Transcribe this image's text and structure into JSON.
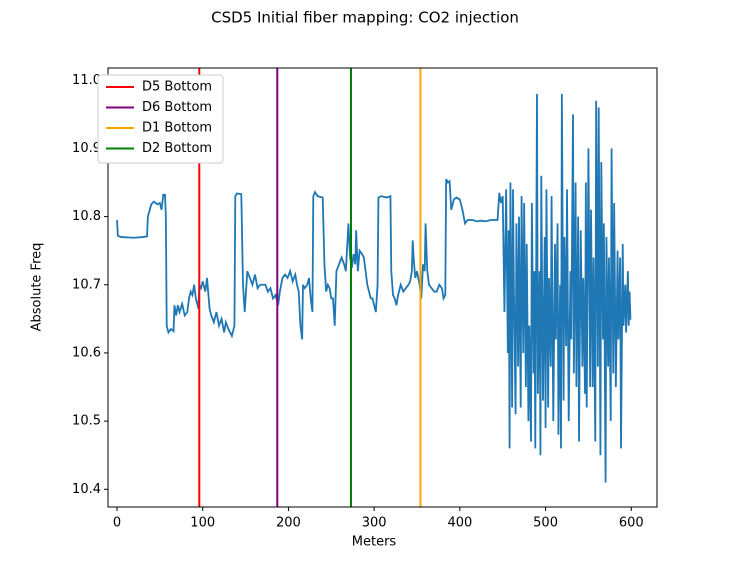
{
  "chart_data": {
    "type": "line",
    "title": "CSD5 Initial fiber mapping: CO2 injection",
    "x_label": "Meters",
    "y_label": "Absolute Freq",
    "x": [
      0,
      1,
      5,
      20,
      30,
      35,
      36,
      40,
      43,
      47,
      50,
      52,
      54,
      56,
      57,
      58,
      60,
      63,
      66,
      67,
      69,
      71,
      73,
      76,
      79,
      82,
      84,
      86,
      88,
      90,
      92,
      95,
      96,
      98,
      100,
      103,
      105,
      108,
      110,
      113,
      116,
      119,
      122,
      125,
      127,
      130,
      134,
      137,
      138,
      140,
      145,
      147,
      149,
      152,
      155,
      158,
      161,
      164,
      167,
      170,
      173,
      176,
      179,
      182,
      185,
      188,
      190,
      193,
      196,
      199,
      202,
      205,
      208,
      210,
      212,
      214,
      216,
      217,
      219,
      222,
      224,
      226,
      228,
      229,
      231,
      234,
      240,
      242,
      244,
      246,
      248,
      250,
      252,
      254,
      256,
      259,
      262,
      265,
      267,
      270,
      272,
      274,
      276,
      278,
      279,
      281,
      283,
      286,
      288,
      290,
      292,
      294,
      296,
      298,
      300,
      302,
      304,
      305,
      308,
      315,
      319,
      320,
      322,
      324,
      326,
      328,
      331,
      334,
      337,
      340,
      342,
      344,
      345,
      346,
      348,
      350,
      353,
      355,
      357,
      359,
      360,
      362,
      364,
      367,
      370,
      373,
      376,
      379,
      381,
      383,
      384,
      386,
      388,
      390,
      393,
      396,
      400,
      403,
      406,
      409,
      415,
      420,
      425,
      430,
      436,
      444,
      446,
      448,
      450,
      452,
      454,
      456,
      457,
      458,
      459,
      461,
      462,
      463,
      465,
      466,
      468,
      469,
      471,
      472,
      474,
      475,
      477,
      478,
      480,
      481,
      483,
      484,
      486,
      487,
      488,
      490,
      491,
      493,
      494,
      495,
      497,
      499,
      500,
      501,
      503,
      504,
      506,
      507,
      509,
      511,
      512,
      514,
      515,
      517,
      518,
      519,
      521,
      522,
      524,
      525,
      527,
      529,
      530,
      532,
      533,
      535,
      536,
      538,
      539,
      541,
      543,
      544,
      546,
      547,
      548,
      550,
      552,
      553,
      555,
      556,
      558,
      559,
      561,
      562,
      564,
      565,
      567,
      568,
      570,
      571,
      573,
      574,
      576,
      577,
      579,
      580,
      582,
      584,
      585,
      587,
      588,
      590,
      591,
      593,
      594,
      596,
      597,
      598,
      599,
      600
    ],
    "series": [
      {
        "color": "#1f77b4",
        "values": [
          10.795,
          10.772,
          10.77,
          10.769,
          10.77,
          10.771,
          10.8,
          10.818,
          10.822,
          10.818,
          10.82,
          10.81,
          10.832,
          10.832,
          10.8,
          10.64,
          10.63,
          10.635,
          10.632,
          10.67,
          10.655,
          10.67,
          10.66,
          10.672,
          10.655,
          10.66,
          10.68,
          10.69,
          10.685,
          10.7,
          10.68,
          10.665,
          10.7,
          10.695,
          10.705,
          10.69,
          10.71,
          10.665,
          10.655,
          10.645,
          10.66,
          10.64,
          10.65,
          10.63,
          10.645,
          10.635,
          10.625,
          10.64,
          10.83,
          10.834,
          10.833,
          10.7,
          10.66,
          10.72,
          10.71,
          10.7,
          10.715,
          10.695,
          10.7,
          10.7,
          10.7,
          10.69,
          10.695,
          10.68,
          10.685,
          10.67,
          10.69,
          10.71,
          10.715,
          10.71,
          10.72,
          10.705,
          10.715,
          10.7,
          10.69,
          10.64,
          10.62,
          10.7,
          10.695,
          10.7,
          10.71,
          10.68,
          10.66,
          10.83,
          10.836,
          10.83,
          10.828,
          10.73,
          10.69,
          10.7,
          10.695,
          10.68,
          10.68,
          10.64,
          10.72,
          10.73,
          10.74,
          10.73,
          10.72,
          10.79,
          10.74,
          10.725,
          10.745,
          10.73,
          10.78,
          10.72,
          10.75,
          10.745,
          10.74,
          10.72,
          10.7,
          10.69,
          10.68,
          10.68,
          10.67,
          10.66,
          10.7,
          10.828,
          10.83,
          10.828,
          10.83,
          10.72,
          10.685,
          10.68,
          10.67,
          10.685,
          10.7,
          10.69,
          10.695,
          10.7,
          10.705,
          10.72,
          10.765,
          10.74,
          10.71,
          10.72,
          10.7,
          10.68,
          10.73,
          10.72,
          10.79,
          10.72,
          10.7,
          10.695,
          10.69,
          10.69,
          10.7,
          10.695,
          10.68,
          10.685,
          10.855,
          10.85,
          10.852,
          10.81,
          10.825,
          10.828,
          10.825,
          10.81,
          10.79,
          10.795,
          10.795,
          10.793,
          10.794,
          10.793,
          10.795,
          10.795,
          10.835,
          10.82,
          10.83,
          10.66,
          10.84,
          10.6,
          10.78,
          10.46,
          10.85,
          10.52,
          10.84,
          10.7,
          10.51,
          10.79,
          10.58,
          10.8,
          10.52,
          10.83,
          10.6,
          10.82,
          10.55,
          10.76,
          10.5,
          10.64,
          10.47,
          10.82,
          10.57,
          10.72,
          10.46,
          10.98,
          10.54,
          10.72,
          10.45,
          10.86,
          10.53,
          10.77,
          10.49,
          10.84,
          10.52,
          10.71,
          10.58,
          10.83,
          10.5,
          10.76,
          10.62,
          10.79,
          10.48,
          10.7,
          10.46,
          10.98,
          10.53,
          10.77,
          10.61,
          10.84,
          10.5,
          10.72,
          10.62,
          10.95,
          10.57,
          10.85,
          10.55,
          10.8,
          10.47,
          10.78,
          10.58,
          10.71,
          10.54,
          10.85,
          10.52,
          10.9,
          10.55,
          10.81,
          10.55,
          10.74,
          10.47,
          10.97,
          10.58,
          10.96,
          10.45,
          10.88,
          10.62,
          10.79,
          10.41,
          10.77,
          10.58,
          10.74,
          10.5,
          10.9,
          10.57,
          10.82,
          10.55,
          10.75,
          10.62,
          10.74,
          10.46,
          10.76,
          10.64,
          10.7,
          10.63,
          10.72,
          10.64,
          10.69,
          10.65,
          10.65
        ]
      }
    ],
    "vlines": [
      {
        "name": "D5 Bottom",
        "color": "red",
        "x": 96
      },
      {
        "name": "D6 Bottom",
        "color": "purple",
        "x": 187
      },
      {
        "name": "D1 Bottom",
        "color": "orange",
        "x": 354
      },
      {
        "name": "D2 Bottom",
        "color": "green",
        "x": 273
      }
    ],
    "xlim": [
      -10.5,
      630
    ],
    "xticks": [
      0,
      100,
      200,
      300,
      400,
      500,
      600
    ],
    "ylim": [
      10.374,
      11.018
    ],
    "yticks": [
      10.4,
      10.5,
      10.6,
      10.7,
      10.8,
      10.9,
      {
        "value": 11,
        "label": "11.0"
      }
    ],
    "legend": "upper left"
  }
}
